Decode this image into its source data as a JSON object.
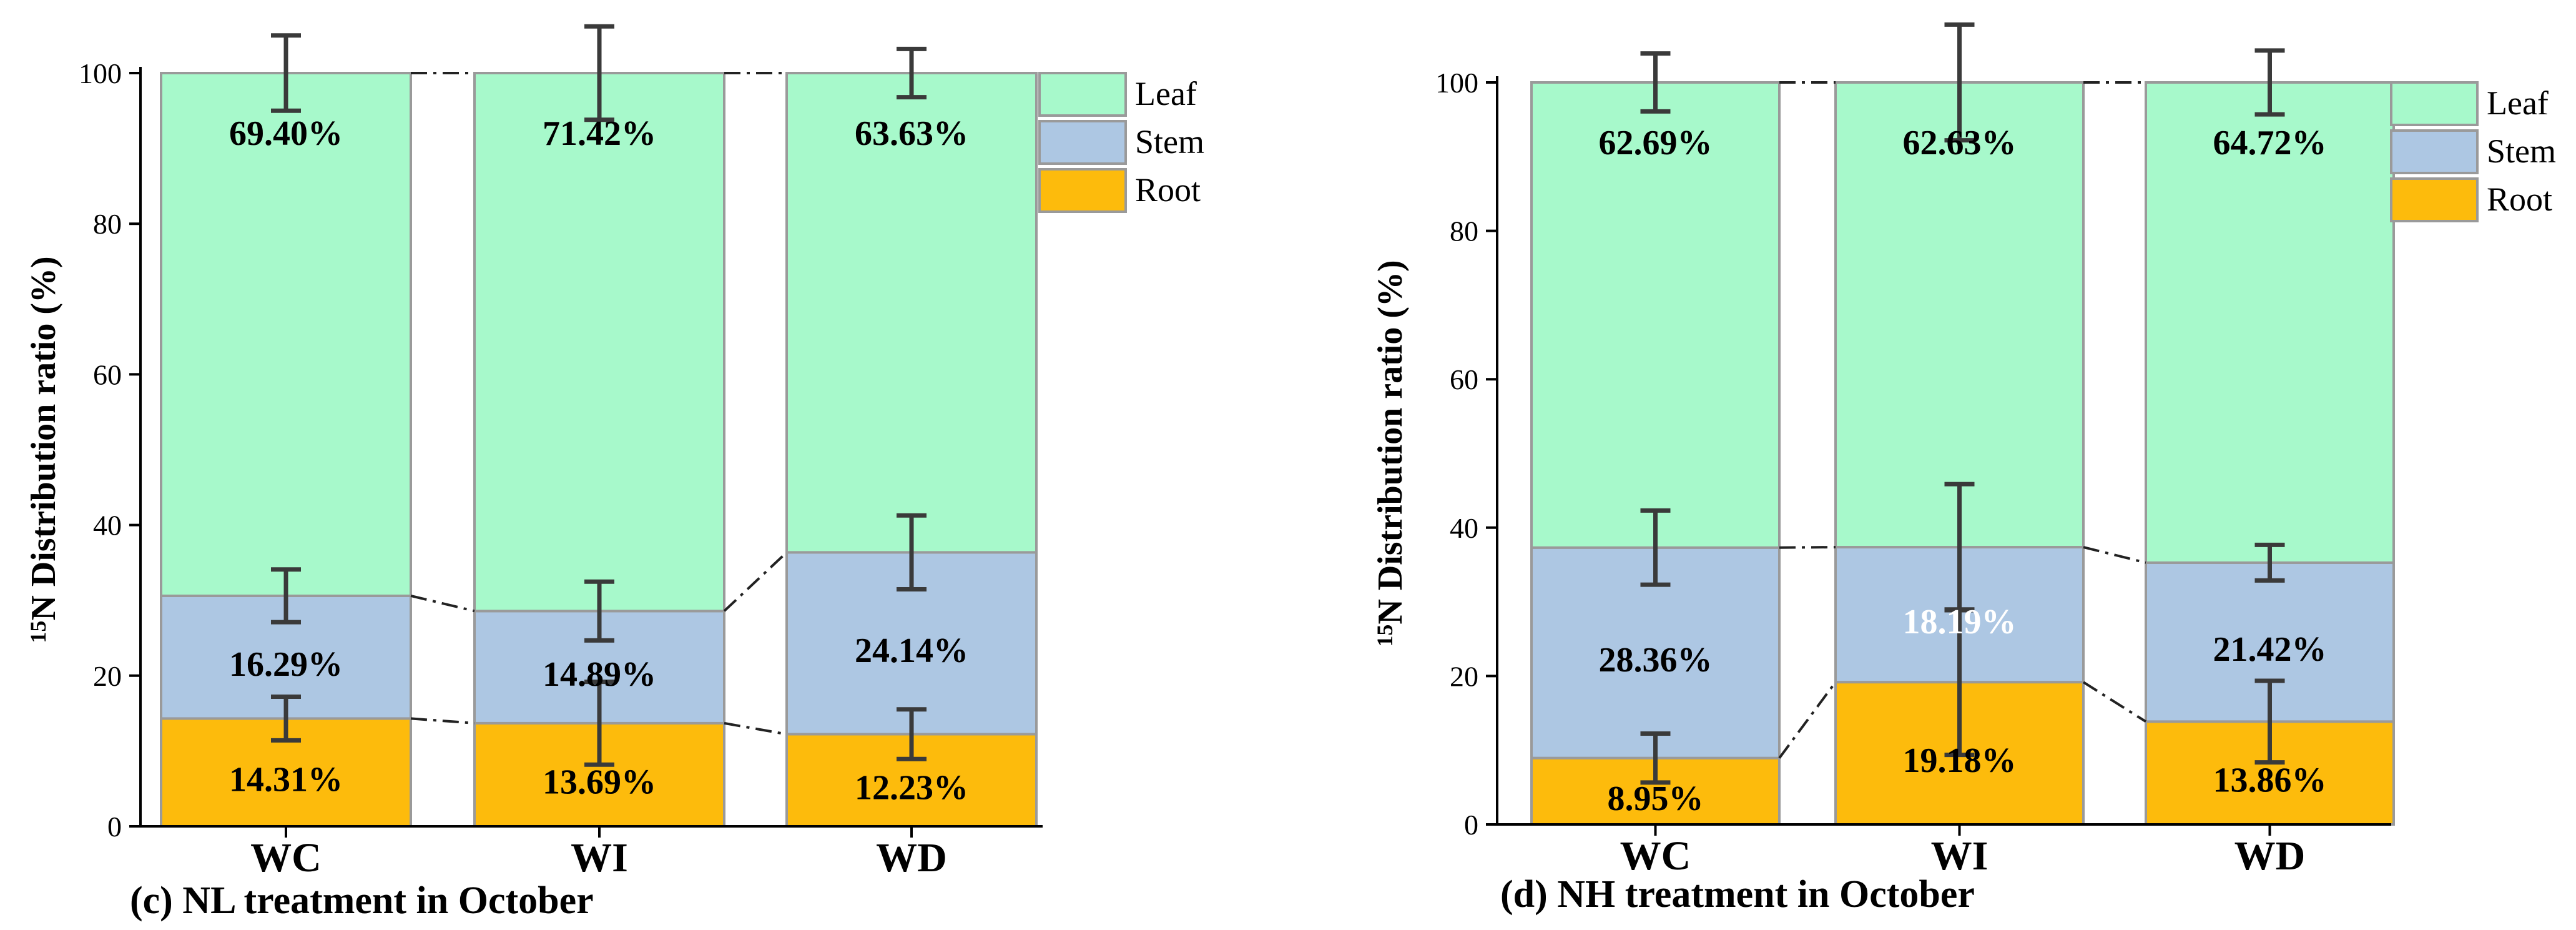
{
  "chart_data": [
    {
      "type": "bar",
      "stacked": true,
      "title": "(c) NL treatment in October",
      "ylabel_sup": "15",
      "ylabel": "N Distribution ratio (%)",
      "xlabel": "",
      "ylim": [
        0,
        100
      ],
      "yticks": [
        "0",
        "20",
        "40",
        "60",
        "80",
        "100"
      ],
      "categories": [
        "WC",
        "WI",
        "WD"
      ],
      "legend": {
        "position": "top-right",
        "entries": [
          "Leaf",
          "Stem",
          "Root"
        ]
      },
      "series": [
        {
          "name": "Root",
          "color": "#fdbb0c",
          "values": [
            14.31,
            13.69,
            12.23
          ],
          "labels": [
            "14.31%",
            "13.69%",
            "12.23%"
          ],
          "errors": [
            2.9,
            5.5,
            3.3
          ]
        },
        {
          "name": "Stem",
          "color": "#adc7e3",
          "values": [
            16.29,
            14.89,
            24.14
          ],
          "labels": [
            "16.29%",
            "14.89%",
            "24.14%"
          ],
          "errors": [
            3.5,
            3.9,
            4.9
          ]
        },
        {
          "name": "Leaf",
          "color": "#a7f9cb",
          "values": [
            69.4,
            71.42,
            63.63
          ],
          "labels": [
            "69.40%",
            "71.42%",
            "63.63%"
          ],
          "errors": [
            5.0,
            6.2,
            3.2
          ]
        }
      ]
    },
    {
      "type": "bar",
      "stacked": true,
      "title": "(d) NH treatment in October",
      "ylabel_sup": "15",
      "ylabel": "N Distribution ratio (%)",
      "xlabel": "",
      "ylim": [
        0,
        100
      ],
      "yticks": [
        "0",
        "20",
        "40",
        "60",
        "80",
        "100"
      ],
      "categories": [
        "WC",
        "WI",
        "WD"
      ],
      "legend": {
        "position": "top-right",
        "entries": [
          "Leaf",
          "Stem",
          "Root"
        ]
      },
      "series": [
        {
          "name": "Root",
          "color": "#fdbb0c",
          "values": [
            8.95,
            19.18,
            13.86
          ],
          "labels": [
            "8.95%",
            "19.18%",
            "13.86%"
          ],
          "errors": [
            3.3,
            9.8,
            5.5
          ]
        },
        {
          "name": "Stem",
          "color": "#adc7e3",
          "values": [
            28.36,
            18.19,
            21.42
          ],
          "labels": [
            "28.36%",
            "18.19%",
            "21.42%"
          ],
          "errors": [
            5.0,
            8.5,
            2.4
          ]
        },
        {
          "name": "Leaf",
          "color": "#a7f9cb",
          "values": [
            62.69,
            62.63,
            64.72
          ],
          "labels": [
            "62.69%",
            "62.63%",
            "64.72%"
          ],
          "errors": [
            3.9,
            7.8,
            4.3
          ]
        }
      ]
    }
  ]
}
